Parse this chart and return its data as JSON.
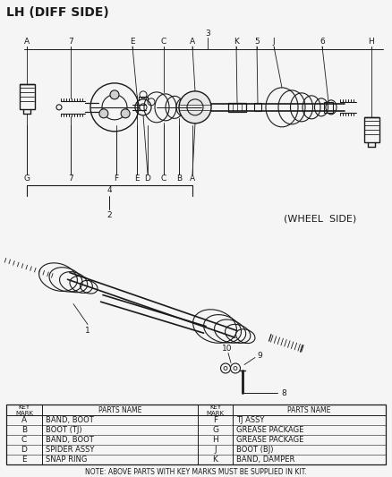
{
  "title": "LH (DIFF SIDE)",
  "wheel_side_label": "(WHEEL  SIDE)",
  "background_color": "#f5f5f5",
  "line_color": "#1a1a1a",
  "table": {
    "col1": [
      [
        "A",
        "BAND, BOOT"
      ],
      [
        "B",
        "BOOT (TJ)"
      ],
      [
        "C",
        "BAND, BOOT"
      ],
      [
        "D",
        "SPIDER ASSY"
      ],
      [
        "E",
        "SNAP RING"
      ]
    ],
    "col2": [
      [
        "F",
        "TJ ASSY"
      ],
      [
        "G",
        "GREASE PACKAGE"
      ],
      [
        "H",
        "GREASE PACKAGE"
      ],
      [
        "J",
        "BOOT (BJ)"
      ],
      [
        "K",
        "BAND, DAMPER"
      ]
    ]
  },
  "note": "NOTE: ABOVE PARTS WITH KEY MARKS MUST BE SUPPLIED IN KIT.",
  "figsize": [
    4.38,
    5.33
  ],
  "dpi": 100
}
